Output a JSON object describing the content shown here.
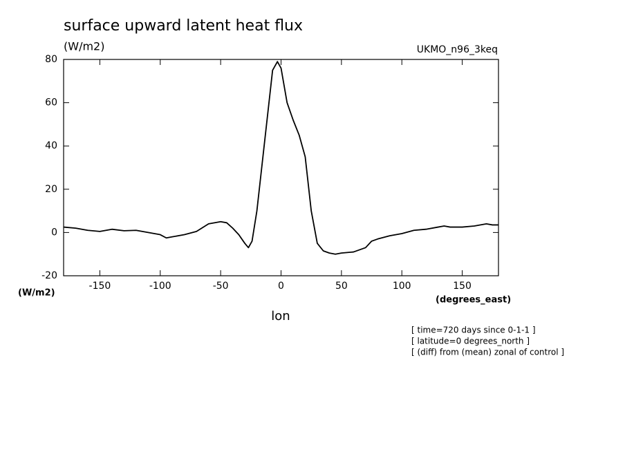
{
  "chart_data": {
    "type": "line",
    "title": "surface upward latent heat flux",
    "subtitle": "(W/m2)",
    "dataset_label": "UKMO_n96_3keq",
    "y_units": "(W/m2)",
    "x_units": "(degrees_east)",
    "x_label": "lon",
    "annotations": [
      "[ time=720 days since 0-1-1 ]",
      "[ latitude=0 degrees_north ]",
      "[ (diff) from (mean) zonal of control ]"
    ],
    "x": [
      -180,
      -170,
      -160,
      -150,
      -140,
      -130,
      -120,
      -110,
      -100,
      -95,
      -90,
      -80,
      -70,
      -60,
      -50,
      -45,
      -40,
      -35,
      -30,
      -27,
      -24,
      -20,
      -15,
      -10,
      -7,
      -3,
      0,
      5,
      10,
      15,
      20,
      25,
      30,
      35,
      40,
      45,
      50,
      60,
      70,
      75,
      80,
      90,
      100,
      110,
      120,
      130,
      135,
      140,
      150,
      160,
      170,
      175,
      180
    ],
    "values": [
      2.5,
      2,
      1,
      0.5,
      1.5,
      0.8,
      1,
      0,
      -1,
      -2.5,
      -2,
      -1,
      0.5,
      4,
      5,
      4.5,
      2,
      -1,
      -5,
      -7,
      -4,
      10,
      35,
      60,
      75,
      79,
      76,
      60,
      52,
      45,
      35,
      10,
      -5,
      -8.5,
      -9.5,
      -10,
      -9.5,
      -9,
      -7,
      -4,
      -3,
      -1.5,
      -0.5,
      1,
      1.5,
      2.5,
      3,
      2.5,
      2.5,
      3,
      4,
      3.5,
      3.5
    ],
    "color": "#000000",
    "xlim": [
      -180,
      180
    ],
    "ylim": [
      -20,
      80
    ],
    "xticks": [
      -150,
      -100,
      -50,
      0,
      50,
      100,
      150
    ],
    "yticks": [
      -20,
      0,
      20,
      40,
      60,
      80
    ]
  }
}
